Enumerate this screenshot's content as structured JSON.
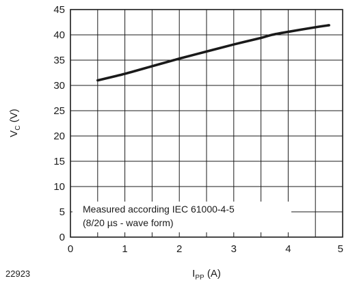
{
  "figure_id": "22923",
  "chart_data": {
    "type": "line",
    "xlabel": {
      "main": "I",
      "sub": "PP",
      "unit": " (A)"
    },
    "ylabel": {
      "main": "V",
      "sub": "C",
      "unit": " (V)"
    },
    "xlim": [
      0,
      5
    ],
    "ylim": [
      0,
      45
    ],
    "xticks": [
      0,
      1,
      2,
      3,
      4,
      5
    ],
    "yticks": [
      0,
      5,
      10,
      15,
      20,
      25,
      30,
      35,
      40,
      45
    ],
    "xgrid_step": 0.5,
    "ygrid_step": 5,
    "grid": true,
    "annotation": {
      "line1": "Measured according IEC 61000-4-5",
      "line2": "(8/20 µs - wave form)",
      "position": "bottom-left"
    },
    "series": [
      {
        "color": "#1a1a1a",
        "x": [
          0.5,
          1.0,
          1.5,
          2.0,
          2.5,
          3.0,
          3.5,
          3.7,
          4.0,
          4.5,
          4.75
        ],
        "y": [
          31.0,
          32.3,
          33.8,
          35.3,
          36.7,
          38.1,
          39.4,
          40.0,
          40.6,
          41.5,
          41.9
        ]
      }
    ]
  }
}
